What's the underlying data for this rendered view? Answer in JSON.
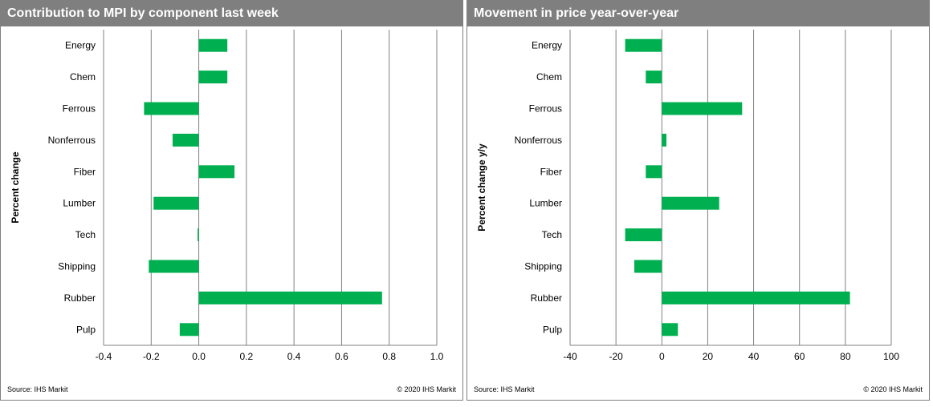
{
  "chart_data": [
    {
      "type": "bar",
      "orientation": "horizontal",
      "title": "Contribution to MPI by component last week",
      "ylabel": "Percent change",
      "categories": [
        "Energy",
        "Chem",
        "Ferrous",
        "Nonferrous",
        "Fiber",
        "Lumber",
        "Tech",
        "Shipping",
        "Rubber",
        "Pulp"
      ],
      "values": [
        0.12,
        0.12,
        -0.23,
        -0.11,
        0.15,
        -0.19,
        -0.005,
        -0.21,
        0.77,
        -0.08
      ],
      "xlim": [
        -0.4,
        1.0
      ],
      "xticks": [
        -0.4,
        -0.2,
        0.0,
        0.2,
        0.4,
        0.6,
        0.8,
        1.0
      ],
      "xtick_labels": [
        "-0.4",
        "-0.2",
        "0.0",
        "0.2",
        "0.4",
        "0.6",
        "0.8",
        "1.0"
      ],
      "grid": "vertical",
      "source": "Source:  IHS Markit",
      "copyright": "© 2020  IHS Markit",
      "bar_color": "#00b050"
    },
    {
      "type": "bar",
      "orientation": "horizontal",
      "title": "Movement in price year-over-year",
      "ylabel": "Percent change y/y",
      "categories": [
        "Energy",
        "Chem",
        "Ferrous",
        "Nonferrous",
        "Fiber",
        "Lumber",
        "Tech",
        "Shipping",
        "Rubber",
        "Pulp"
      ],
      "values": [
        -16,
        -7,
        35,
        2,
        -7,
        25,
        -16,
        -12,
        82,
        7
      ],
      "xlim": [
        -40,
        100
      ],
      "xticks": [
        -40,
        -20,
        0,
        20,
        40,
        60,
        80,
        100
      ],
      "xtick_labels": [
        "-40",
        "-20",
        "0",
        "20",
        "40",
        "60",
        "80",
        "100"
      ],
      "grid": "vertical",
      "source": "Source:  IHS Markit",
      "copyright": "© 2020  IHS Markit",
      "bar_color": "#00b050"
    }
  ]
}
